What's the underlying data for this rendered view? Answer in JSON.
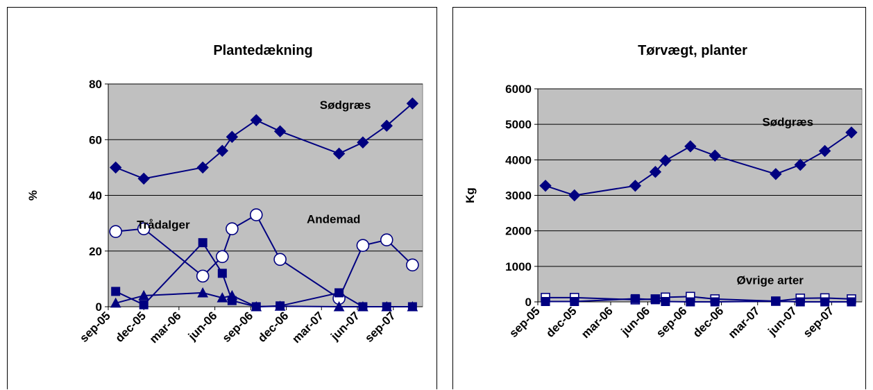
{
  "chart_data": [
    {
      "type": "line",
      "title": "Plantedækning",
      "xlabel": "",
      "ylabel": "%",
      "ylim": [
        0,
        80
      ],
      "yticks": [
        "0",
        "20",
        "40",
        "60",
        "80"
      ],
      "xticks": [
        "sep-05",
        "dec-05",
        "mar-06",
        "jun-06",
        "sep-06",
        "dec-06",
        "mar-07",
        "jun-07",
        "sep-07"
      ],
      "grid": true,
      "series": [
        {
          "name": "Sødgræs",
          "marker": "diamond",
          "points": [
            [
              "2005-09-20",
              50
            ],
            [
              "2005-12-01",
              46
            ],
            [
              "2006-05-01",
              50
            ],
            [
              "2006-06-20",
              56
            ],
            [
              "2006-07-15",
              61
            ],
            [
              "2006-09-15",
              67
            ],
            [
              "2006-11-15",
              63
            ],
            [
              "2007-04-15",
              55
            ],
            [
              "2007-06-15",
              59
            ],
            [
              "2007-08-15",
              65
            ],
            [
              "2007-10-20",
              73
            ]
          ]
        },
        {
          "name": "Andemad",
          "marker": "open-circle",
          "points": [
            [
              "2005-09-20",
              27
            ],
            [
              "2005-12-01",
              28
            ],
            [
              "2006-05-01",
              11
            ],
            [
              "2006-06-20",
              18
            ],
            [
              "2006-07-15",
              28
            ],
            [
              "2006-09-15",
              33
            ],
            [
              "2006-11-15",
              17
            ],
            [
              "2007-04-15",
              3
            ],
            [
              "2007-06-15",
              22
            ],
            [
              "2007-08-15",
              24
            ],
            [
              "2007-10-20",
              15
            ]
          ]
        },
        {
          "name": "Trådalger",
          "marker": "square",
          "points": [
            [
              "2005-09-20",
              5.5
            ],
            [
              "2005-12-01",
              0.7
            ],
            [
              "2006-05-01",
              23
            ],
            [
              "2006-06-20",
              12
            ],
            [
              "2006-07-15",
              2.2
            ],
            [
              "2006-09-15",
              0
            ],
            [
              "2006-11-15",
              0.3
            ],
            [
              "2007-04-15",
              5
            ],
            [
              "2007-06-15",
              0
            ],
            [
              "2007-08-15",
              0
            ],
            [
              "2007-10-20",
              0
            ]
          ]
        },
        {
          "name": "",
          "marker": "triangle",
          "points": [
            [
              "2005-09-20",
              1.3
            ],
            [
              "2005-12-01",
              4
            ],
            [
              "2006-05-01",
              5
            ],
            [
              "2006-06-20",
              3.2
            ],
            [
              "2006-07-15",
              4
            ],
            [
              "2006-09-15",
              0
            ],
            [
              "2006-11-15",
              0.2
            ],
            [
              "2007-04-15",
              0
            ],
            [
              "2007-06-15",
              0
            ],
            [
              "2007-08-15",
              0
            ],
            [
              "2007-10-20",
              0
            ]
          ]
        }
      ],
      "annotations": [
        {
          "text": "Sødgræs",
          "x": "2007-05-01",
          "y": 71
        },
        {
          "text": "Trådalger",
          "x": "2006-01-20",
          "y": 28
        },
        {
          "text": "Andemad",
          "x": "2007-04-01",
          "y": 30
        }
      ]
    },
    {
      "type": "line",
      "title": "Tørvægt, planter",
      "xlabel": "",
      "ylabel": "Kg",
      "ylim": [
        0,
        6000
      ],
      "yticks": [
        "0",
        "1000",
        "2000",
        "3000",
        "4000",
        "5000",
        "6000"
      ],
      "xticks": [
        "sep-05",
        "dec-05",
        "mar-06",
        "jun-06",
        "sep-06",
        "dec-06",
        "mar-07",
        "jun-07",
        "sep-07"
      ],
      "grid": true,
      "series": [
        {
          "name": "Sødgræs",
          "marker": "diamond",
          "points": [
            [
              "2005-09-20",
              3270
            ],
            [
              "2005-12-01",
              3000
            ],
            [
              "2006-05-01",
              3270
            ],
            [
              "2006-06-20",
              3660
            ],
            [
              "2006-07-15",
              3980
            ],
            [
              "2006-09-15",
              4380
            ],
            [
              "2006-11-15",
              4120
            ],
            [
              "2007-04-15",
              3600
            ],
            [
              "2007-06-15",
              3860
            ],
            [
              "2007-08-15",
              4250
            ],
            [
              "2007-10-20",
              4770
            ]
          ]
        },
        {
          "name": "Øvrige arter",
          "marker": "open-square",
          "points": [
            [
              "2005-09-20",
              120
            ],
            [
              "2005-12-01",
              120
            ],
            [
              "2006-05-01",
              60
            ],
            [
              "2006-06-20",
              80
            ],
            [
              "2006-07-15",
              130
            ],
            [
              "2006-09-15",
              150
            ],
            [
              "2006-11-15",
              80
            ],
            [
              "2007-04-15",
              20
            ],
            [
              "2007-06-15",
              100
            ],
            [
              "2007-08-15",
              110
            ],
            [
              "2007-10-20",
              80
            ]
          ]
        },
        {
          "name": "",
          "marker": "square",
          "points": [
            [
              "2005-09-20",
              10
            ],
            [
              "2005-12-01",
              10
            ],
            [
              "2006-05-01",
              90
            ],
            [
              "2006-06-20",
              60
            ],
            [
              "2006-07-15",
              10
            ],
            [
              "2006-09-15",
              0
            ],
            [
              "2006-11-15",
              0
            ],
            [
              "2007-04-15",
              20
            ],
            [
              "2007-06-15",
              0
            ],
            [
              "2007-08-15",
              0
            ],
            [
              "2007-10-20",
              0
            ]
          ]
        }
      ],
      "annotations": [
        {
          "text": "Sødgræs",
          "x": "2007-05-15",
          "y": 4950
        },
        {
          "text": "Øvrige arter",
          "x": "2007-04-01",
          "y": 500
        }
      ]
    }
  ],
  "colors": {
    "series": "#000080",
    "plot_background": "#c0c0c0",
    "gridline": "#000000"
  }
}
